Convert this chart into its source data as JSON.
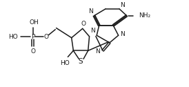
{
  "background": "#ffffff",
  "line_color": "#1a1a1a",
  "line_width": 1.1,
  "font_size": 6.5,
  "fig_width": 2.74,
  "fig_height": 1.26,
  "dpi": 100,
  "xlim": [
    0,
    10
  ],
  "ylim": [
    0,
    4.6
  ]
}
